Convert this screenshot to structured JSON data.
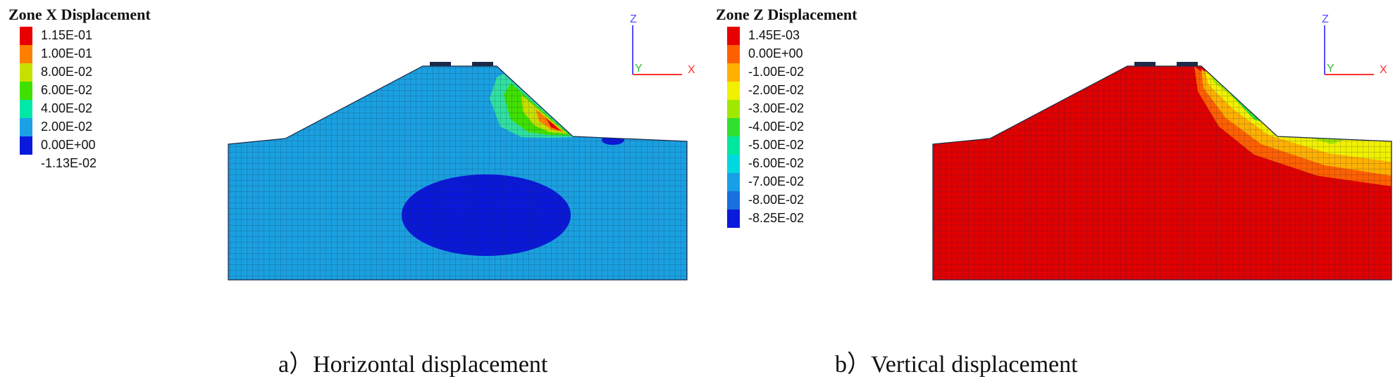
{
  "panels": [
    {
      "legend_title": "Zone X Displacement",
      "legend": [
        {
          "label": "1.15E-01",
          "color": "#e80000"
        },
        {
          "label": "1.00E-01",
          "color": "#ff8000"
        },
        {
          "label": "8.00E-02",
          "color": "#c8e000"
        },
        {
          "label": "6.00E-02",
          "color": "#40e000"
        },
        {
          "label": "4.00E-02",
          "color": "#00e8a8"
        },
        {
          "label": "2.00E-02",
          "color": "#1ca0e6"
        },
        {
          "label": "0.00E+00",
          "color": "#0a1adc"
        },
        {
          "label": "-1.13E-02",
          "color": "#ffffff"
        }
      ],
      "axes": {
        "z": "Z",
        "y": "Y",
        "x": "X"
      },
      "caption": "a）Horizontal displacement"
    },
    {
      "legend_title": "Zone Z Displacement",
      "legend": [
        {
          "label": "1.45E-03",
          "color": "#e80000"
        },
        {
          "label": "0.00E+00",
          "color": "#ff6000"
        },
        {
          "label": "-1.00E-02",
          "color": "#ffb000"
        },
        {
          "label": "-2.00E-02",
          "color": "#f0f000"
        },
        {
          "label": "-3.00E-02",
          "color": "#a0e800"
        },
        {
          "label": "-4.00E-02",
          "color": "#30e030"
        },
        {
          "label": "-5.00E-02",
          "color": "#00e8a0"
        },
        {
          "label": "-6.00E-02",
          "color": "#00d8e0"
        },
        {
          "label": "-7.00E-02",
          "color": "#18a0e6"
        },
        {
          "label": "-8.00E-02",
          "color": "#1870e0"
        },
        {
          "label": "-8.25E-02",
          "color": "#0a1adc"
        }
      ],
      "axes": {
        "z": "Z",
        "y": "Y",
        "x": "X"
      },
      "caption": "b）Vertical displacement"
    }
  ],
  "colors": {
    "soil_blue": "#1aa0e0",
    "deep_blue": "#0a18d8",
    "soil_red": "#e00000",
    "mesh": "#1c2a48",
    "axis_z": "#5050ff",
    "axis_y": "#30c030",
    "axis_x": "#ff3030"
  }
}
